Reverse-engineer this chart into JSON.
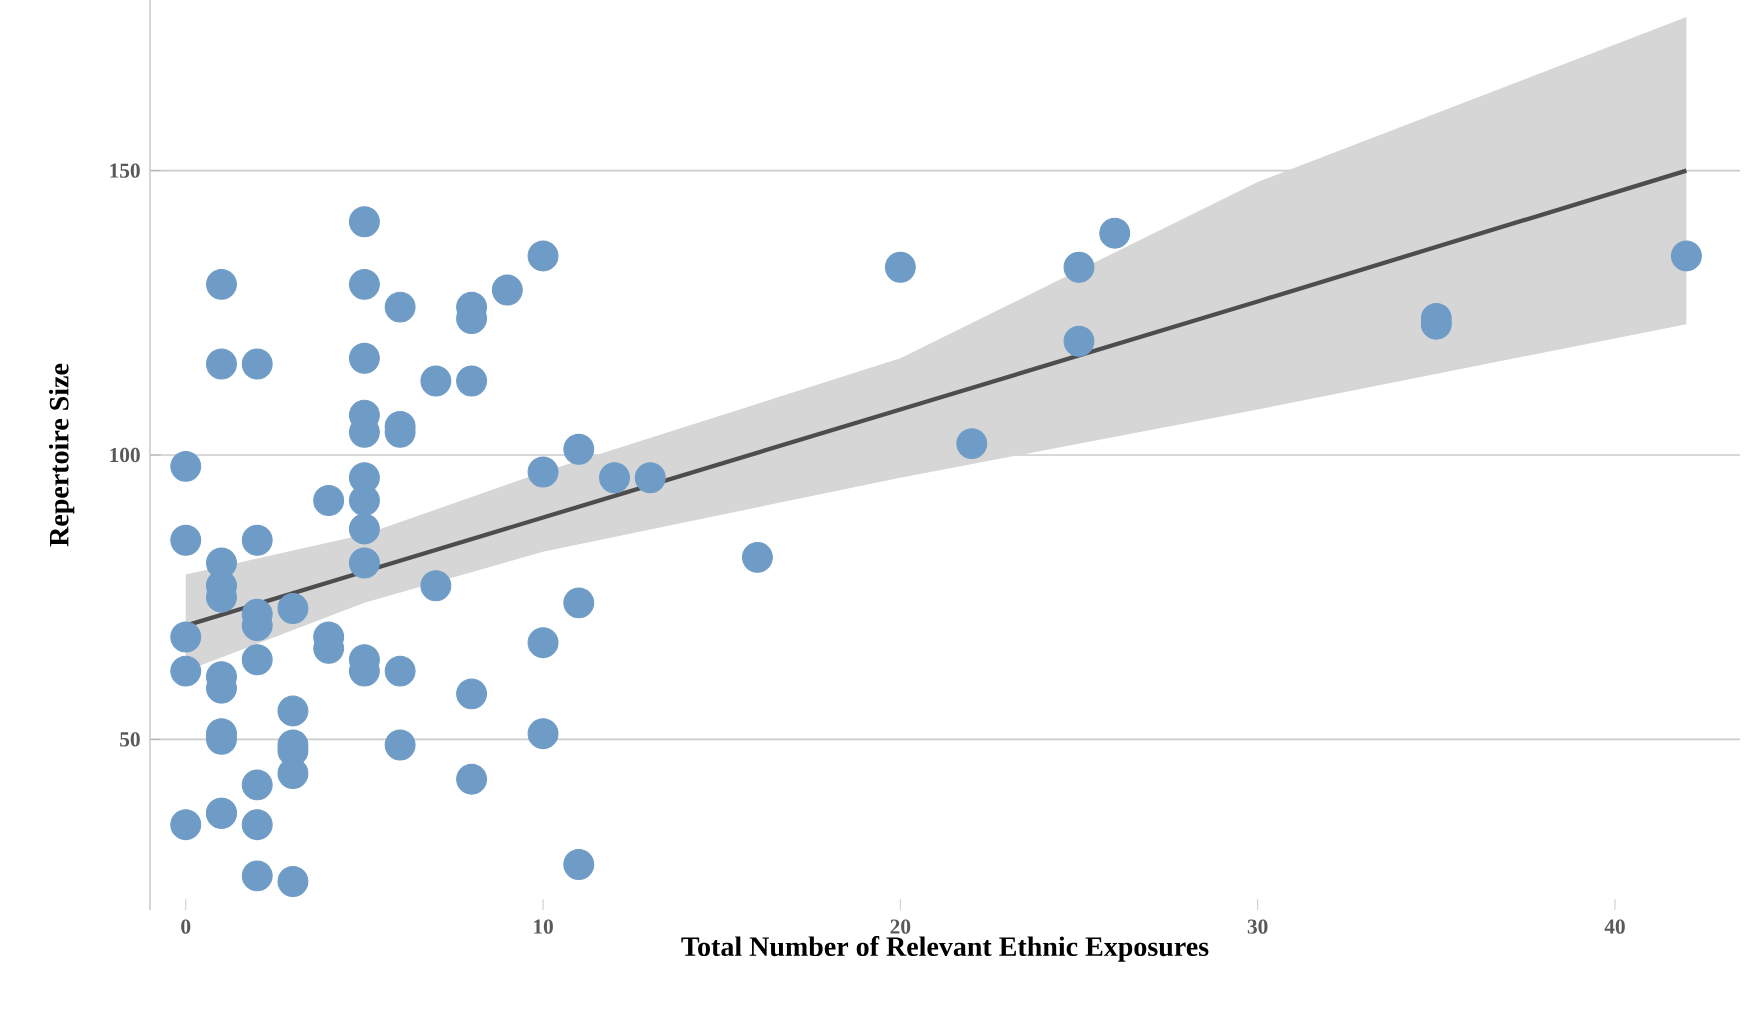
{
  "chart_data": {
    "type": "scatter",
    "xlabel": "Total Number of Relevant Ethnic Exposures",
    "ylabel": "Repertoire Size",
    "xlim": [
      -1,
      43.5
    ],
    "ylim": [
      20,
      180
    ],
    "xticks": [
      0,
      10,
      20,
      30,
      40
    ],
    "yticks": [
      50,
      100,
      150
    ],
    "grid": "y",
    "marker": "circle",
    "series": [
      {
        "color": "#6f9cc6",
        "x": [
          0,
          0,
          0,
          0,
          0,
          1,
          1,
          1,
          1,
          1,
          1,
          1,
          1,
          1,
          1,
          1,
          2,
          2,
          2,
          2,
          2,
          2,
          2,
          2,
          3,
          3,
          3,
          3,
          3,
          3,
          4,
          4,
          4,
          5,
          5,
          5,
          5,
          5,
          5,
          5,
          5,
          5,
          5,
          5,
          6,
          6,
          6,
          6,
          6,
          7,
          7,
          8,
          8,
          8,
          8,
          8,
          9,
          10,
          10,
          10,
          10,
          11,
          11,
          11,
          12,
          13,
          16,
          20,
          22,
          25,
          25,
          26,
          35,
          35,
          42
        ],
        "values": [
          98,
          85,
          68,
          62,
          35,
          130,
          116,
          81,
          77,
          75,
          61,
          59,
          51,
          50,
          37,
          37,
          116,
          85,
          72,
          70,
          64,
          42,
          35,
          26,
          73,
          55,
          49,
          48,
          44,
          25,
          92,
          68,
          66,
          141,
          130,
          117,
          107,
          104,
          96,
          92,
          87,
          81,
          64,
          62,
          126,
          105,
          104,
          62,
          49,
          113,
          77,
          126,
          124,
          113,
          58,
          43,
          129,
          135,
          97,
          67,
          51,
          101,
          74,
          28,
          96,
          96,
          82,
          133,
          102,
          133,
          120,
          139,
          124,
          123,
          135
        ]
      },
      {
        "type": "line",
        "color": "#4d4d4d",
        "marker": "none",
        "x": [
          0,
          5,
          10,
          20,
          30,
          42
        ],
        "values": [
          70,
          79.5,
          89,
          108,
          127,
          150
        ],
        "lower": [
          62,
          74,
          83,
          96,
          108,
          123
        ],
        "upper": [
          79,
          86,
          97,
          117,
          148,
          177
        ]
      }
    ]
  }
}
